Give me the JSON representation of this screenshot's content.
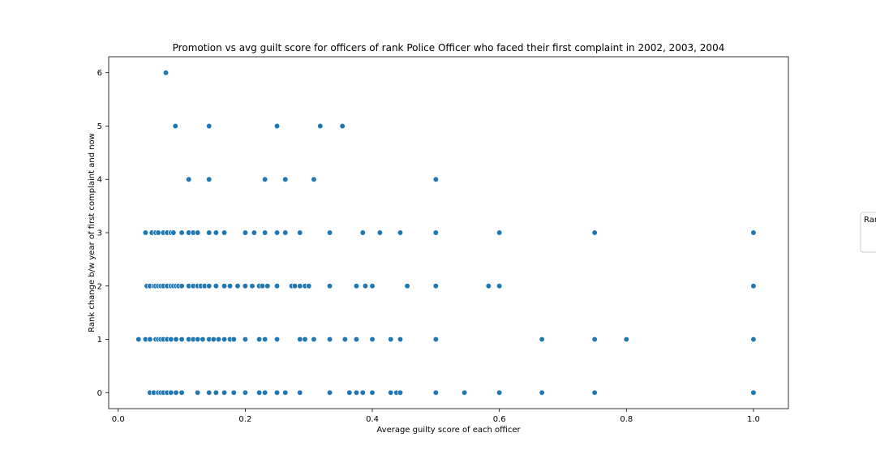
{
  "chart_data": {
    "type": "scatter",
    "title": "Promotion vs avg guilt score for officers of rank Police Officer who faced their first complaint in 2002, 2003, 2004",
    "xlabel": "Average guilty score of each officer",
    "ylabel": "Rank change b/w year of first complaint and now",
    "xlim": [
      -0.015,
      1.055
    ],
    "ylim": [
      -0.3,
      6.3
    ],
    "xticks": [
      0.0,
      0.2,
      0.4,
      0.6,
      0.8,
      1.0
    ],
    "xtick_labels": [
      "0.0",
      "0.2",
      "0.4",
      "0.6",
      "0.8",
      "1.0"
    ],
    "yticks": [
      0,
      1,
      2,
      3,
      4,
      5,
      6
    ],
    "ytick_labels": [
      "0",
      "1",
      "2",
      "3",
      "4",
      "5",
      "6"
    ],
    "grid": false,
    "legend_title": "Ran",
    "legend_position": "right (clipped)",
    "marker_color": "#1f77b4",
    "series": [
      {
        "x": [
          0.075,
          0.09,
          0.143,
          0.25,
          0.318,
          0.353,
          0.111,
          0.143,
          0.231,
          0.263,
          0.308,
          0.5,
          0.043,
          0.053,
          0.059,
          0.063,
          0.071,
          0.077,
          0.083,
          0.087,
          0.1,
          0.111,
          0.118,
          0.125,
          0.143,
          0.154,
          0.167,
          0.2,
          0.214,
          0.231,
          0.25,
          0.263,
          0.286,
          0.333,
          0.385,
          0.412,
          0.444,
          0.5,
          0.6,
          0.75,
          1.0,
          0.045,
          0.05,
          0.056,
          0.059,
          0.063,
          0.067,
          0.071,
          0.077,
          0.083,
          0.087,
          0.091,
          0.095,
          0.1,
          0.111,
          0.118,
          0.125,
          0.13,
          0.136,
          0.143,
          0.154,
          0.167,
          0.176,
          0.188,
          0.2,
          0.211,
          0.222,
          0.227,
          0.235,
          0.25,
          0.273,
          0.278,
          0.286,
          0.294,
          0.3,
          0.333,
          0.375,
          0.389,
          0.4,
          0.455,
          0.5,
          0.583,
          0.6,
          1.0,
          0.032,
          0.043,
          0.05,
          0.059,
          0.063,
          0.067,
          0.071,
          0.077,
          0.083,
          0.091,
          0.1,
          0.111,
          0.118,
          0.125,
          0.133,
          0.143,
          0.15,
          0.158,
          0.167,
          0.176,
          0.182,
          0.2,
          0.222,
          0.231,
          0.25,
          0.286,
          0.294,
          0.308,
          0.333,
          0.357,
          0.375,
          0.4,
          0.429,
          0.444,
          0.5,
          0.667,
          0.75,
          0.8,
          1.0,
          0.05,
          0.056,
          0.063,
          0.067,
          0.071,
          0.077,
          0.083,
          0.091,
          0.1,
          0.125,
          0.143,
          0.154,
          0.167,
          0.182,
          0.2,
          0.222,
          0.231,
          0.25,
          0.263,
          0.286,
          0.333,
          0.364,
          0.375,
          0.385,
          0.4,
          0.429,
          0.438,
          0.444,
          0.5,
          0.545,
          0.6,
          0.667,
          0.75,
          1.0
        ],
        "y": [
          6,
          5,
          5,
          5,
          5,
          5,
          4,
          4,
          4,
          4,
          4,
          4,
          3,
          3,
          3,
          3,
          3,
          3,
          3,
          3,
          3,
          3,
          3,
          3,
          3,
          3,
          3,
          3,
          3,
          3,
          3,
          3,
          3,
          3,
          3,
          3,
          3,
          3,
          3,
          3,
          3,
          2,
          2,
          2,
          2,
          2,
          2,
          2,
          2,
          2,
          2,
          2,
          2,
          2,
          2,
          2,
          2,
          2,
          2,
          2,
          2,
          2,
          2,
          2,
          2,
          2,
          2,
          2,
          2,
          2,
          2,
          2,
          2,
          2,
          2,
          2,
          2,
          2,
          2,
          2,
          2,
          2,
          2,
          2,
          1,
          1,
          1,
          1,
          1,
          1,
          1,
          1,
          1,
          1,
          1,
          1,
          1,
          1,
          1,
          1,
          1,
          1,
          1,
          1,
          1,
          1,
          1,
          1,
          1,
          1,
          1,
          1,
          1,
          1,
          1,
          1,
          1,
          1,
          1,
          1,
          1,
          1,
          1,
          0,
          0,
          0,
          0,
          0,
          0,
          0,
          0,
          0,
          0,
          0,
          0,
          0,
          0,
          0,
          0,
          0,
          0,
          0,
          0,
          0,
          0,
          0,
          0,
          0,
          0,
          0,
          0,
          0,
          0,
          0,
          0,
          0,
          0
        ]
      }
    ]
  }
}
